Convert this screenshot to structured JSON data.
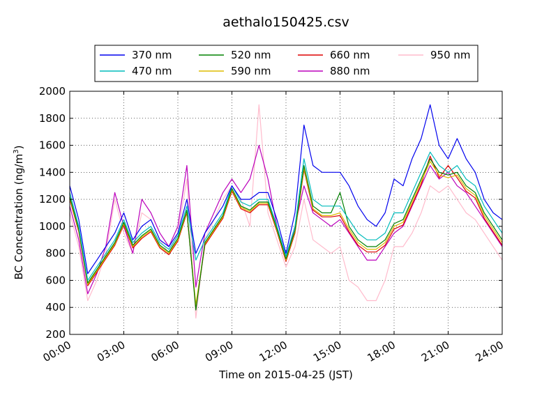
{
  "chart_data": {
    "type": "line",
    "title": "aethalo150425.csv",
    "xlabel": "Time on 2015-04-25 (JST)",
    "ylabel_main": "BC Concentration (ng/m",
    "ylabel_sup": "3",
    "ylabel_end": ")",
    "xlim": [
      0,
      24
    ],
    "ylim": [
      200,
      2000
    ],
    "yticks": [
      200,
      400,
      600,
      800,
      1000,
      1200,
      1400,
      1600,
      1800,
      2000
    ],
    "xticks": [
      {
        "hour": 0,
        "label": "00:00"
      },
      {
        "hour": 3,
        "label": "03:00"
      },
      {
        "hour": 6,
        "label": "06:00"
      },
      {
        "hour": 9,
        "label": "09:00"
      },
      {
        "hour": 12,
        "label": "12:00"
      },
      {
        "hour": 15,
        "label": "15:00"
      },
      {
        "hour": 18,
        "label": "18:00"
      },
      {
        "hour": 21,
        "label": "21:00"
      },
      {
        "hour": 24,
        "label": "24:00"
      }
    ],
    "grid": true,
    "legend_position": "top-center",
    "x": [
      0,
      0.5,
      1,
      1.5,
      2,
      2.5,
      3,
      3.5,
      4,
      4.5,
      5,
      5.5,
      6,
      6.5,
      7,
      7.5,
      8,
      8.5,
      9,
      9.5,
      10,
      10.5,
      11,
      11.5,
      12,
      12.5,
      13,
      13.5,
      14,
      14.5,
      15,
      15.5,
      16,
      16.5,
      17,
      17.5,
      18,
      18.5,
      19,
      19.5,
      20,
      20.5,
      21,
      21.5,
      22,
      22.5,
      23,
      23.5,
      24
    ],
    "series": [
      {
        "name": "370 nm",
        "color": "#0000ee",
        "values": [
          1300,
          1050,
          650,
          750,
          850,
          950,
          1100,
          900,
          1000,
          1050,
          900,
          850,
          950,
          1200,
          800,
          950,
          1050,
          1150,
          1300,
          1200,
          1200,
          1250,
          1250,
          1050,
          800,
          1100,
          1750,
          1450,
          1400,
          1400,
          1400,
          1300,
          1150,
          1050,
          1000,
          1100,
          1350,
          1300,
          1500,
          1650,
          1900,
          1600,
          1500,
          1650,
          1500,
          1400,
          1200,
          1100,
          1050
        ]
      },
      {
        "name": "470 nm",
        "color": "#00bbbb",
        "values": [
          1250,
          1000,
          600,
          700,
          800,
          900,
          1050,
          880,
          950,
          1000,
          880,
          830,
          930,
          1150,
          750,
          900,
          1000,
          1100,
          1300,
          1180,
          1150,
          1200,
          1200,
          1000,
          780,
          1000,
          1500,
          1200,
          1150,
          1150,
          1150,
          1050,
          950,
          900,
          900,
          950,
          1100,
          1100,
          1250,
          1400,
          1550,
          1450,
          1400,
          1450,
          1350,
          1300,
          1150,
          1050,
          950
        ]
      },
      {
        "name": "520 nm",
        "color": "#008000",
        "values": [
          1220,
          980,
          580,
          680,
          780,
          880,
          1030,
          860,
          930,
          980,
          860,
          810,
          910,
          1120,
          380,
          880,
          980,
          1080,
          1280,
          1150,
          1120,
          1180,
          1180,
          980,
          760,
          970,
          1450,
          1150,
          1100,
          1100,
          1250,
          1000,
          900,
          850,
          850,
          900,
          1020,
          1050,
          1200,
          1350,
          1500,
          1400,
          1380,
          1400,
          1300,
          1250,
          1100,
          1000,
          900
        ]
      },
      {
        "name": "590 nm",
        "color": "#ddbb00",
        "values": [
          1210,
          970,
          570,
          670,
          770,
          870,
          1020,
          850,
          920,
          970,
          850,
          800,
          900,
          1110,
          420,
          870,
          970,
          1070,
          1270,
          1140,
          1110,
          1170,
          1170,
          970,
          750,
          960,
          1430,
          1130,
          1080,
          1080,
          1100,
          980,
          880,
          830,
          830,
          880,
          1000,
          1030,
          1180,
          1330,
          1480,
          1380,
          1360,
          1380,
          1280,
          1230,
          1080,
          980,
          880
        ]
      },
      {
        "name": "660 nm",
        "color": "#dd0000",
        "values": [
          1200,
          960,
          560,
          660,
          760,
          860,
          1010,
          840,
          910,
          960,
          840,
          790,
          890,
          1100,
          400,
          860,
          960,
          1060,
          1260,
          1130,
          1100,
          1160,
          1160,
          960,
          740,
          950,
          1420,
          1120,
          1070,
          1070,
          1080,
          960,
          860,
          810,
          810,
          860,
          980,
          1010,
          1160,
          1310,
          1520,
          1360,
          1450,
          1360,
          1260,
          1210,
          1060,
          960,
          860
        ]
      },
      {
        "name": "880 nm",
        "color": "#bb00bb",
        "values": [
          1150,
          900,
          500,
          650,
          850,
          1250,
          1000,
          800,
          1200,
          1100,
          950,
          850,
          1000,
          1450,
          550,
          950,
          1100,
          1250,
          1350,
          1250,
          1350,
          1600,
          1350,
          1000,
          750,
          1000,
          1300,
          1100,
          1050,
          1000,
          1050,
          950,
          850,
          750,
          750,
          850,
          950,
          1000,
          1150,
          1300,
          1450,
          1350,
          1400,
          1300,
          1250,
          1150,
          1050,
          950,
          850
        ]
      },
      {
        "name": "950 nm",
        "color": "#ffbbcc",
        "values": [
          1100,
          850,
          450,
          600,
          800,
          1200,
          950,
          800,
          1100,
          1050,
          900,
          800,
          950,
          1350,
          320,
          900,
          1050,
          1200,
          1300,
          1200,
          1000,
          1900,
          1100,
          900,
          700,
          850,
          1200,
          900,
          850,
          800,
          850,
          600,
          550,
          450,
          450,
          600,
          850,
          850,
          950,
          1100,
          1300,
          1250,
          1300,
          1200,
          1100,
          1050,
          950,
          850,
          750
        ]
      }
    ]
  }
}
